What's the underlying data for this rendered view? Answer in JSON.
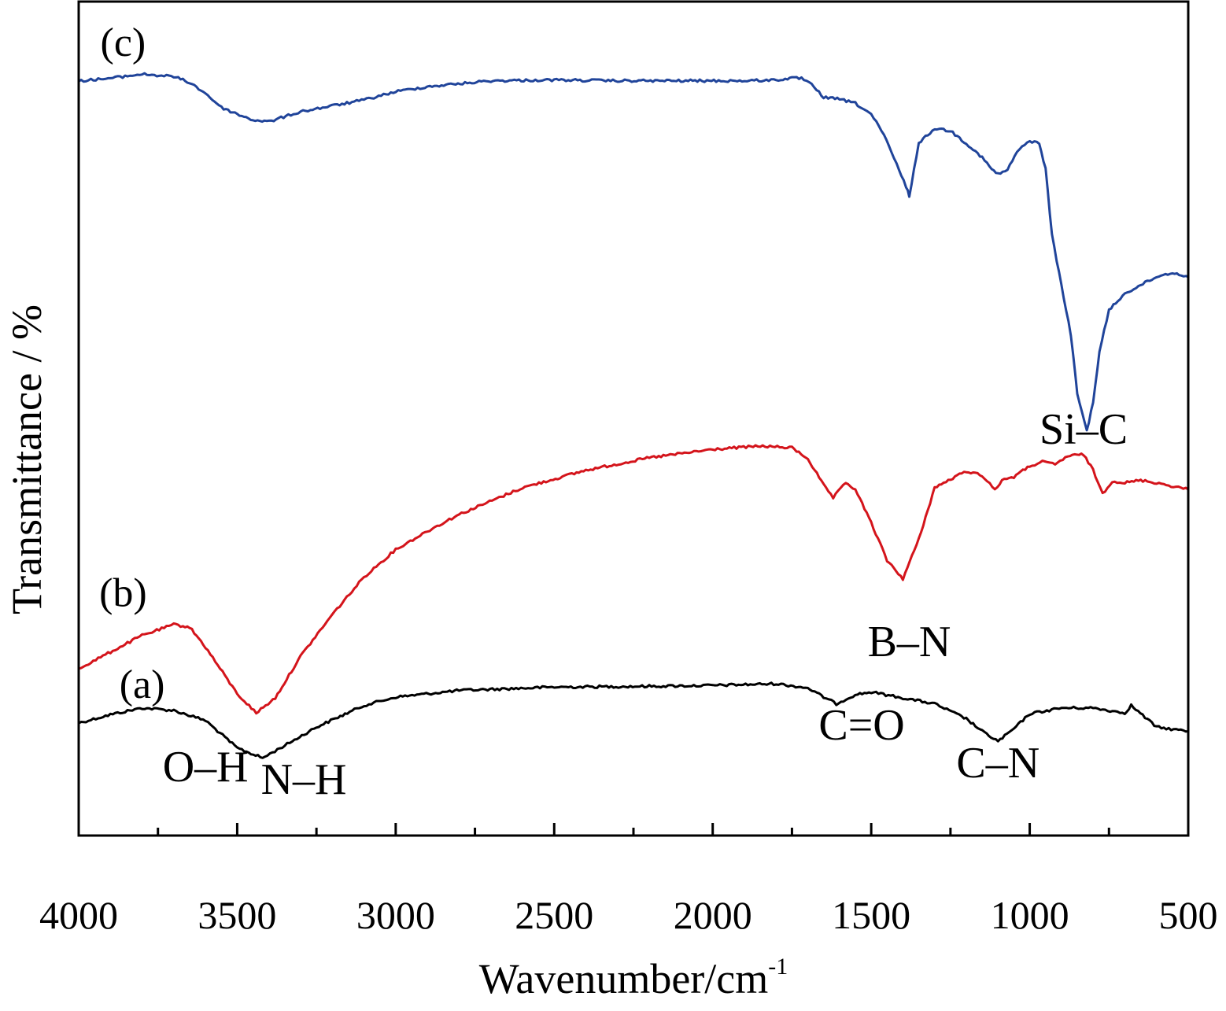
{
  "chart_data": {
    "type": "line",
    "xlabel": "Wavenumber/cm",
    "xlabel_sup": "-1",
    "ylabel": "Transmittance / %",
    "xlim": [
      4000,
      500
    ],
    "x_reversed": true,
    "xticks": [
      4000,
      3500,
      3000,
      2500,
      2000,
      1500,
      1000,
      500
    ],
    "xtick_labels": [
      "4000",
      "3500",
      "3000",
      "2500",
      "2000",
      "1500",
      "1000",
      "500"
    ],
    "ylim": [
      0,
      100
    ],
    "y_tick_labels_shown": false,
    "grid": false,
    "legend": "none",
    "series": [
      {
        "name": "(a)",
        "color": "#000000",
        "x": [
          4000,
          3900,
          3800,
          3700,
          3600,
          3500,
          3420,
          3350,
          3250,
          3100,
          3000,
          2800,
          2500,
          2200,
          2000,
          1800,
          1700,
          1650,
          1610,
          1550,
          1500,
          1400,
          1300,
          1200,
          1150,
          1100,
          1050,
          1000,
          900,
          800,
          700,
          680,
          600,
          500
        ],
        "y": [
          13.5,
          14.5,
          15.3,
          15.0,
          13.8,
          10.5,
          9.3,
          10.8,
          13.0,
          15.6,
          16.6,
          17.4,
          17.8,
          17.9,
          18.0,
          18.2,
          17.7,
          16.6,
          15.8,
          16.9,
          17.2,
          16.5,
          15.8,
          14.0,
          12.5,
          11.3,
          12.8,
          14.6,
          15.3,
          15.3,
          14.7,
          15.6,
          13.0,
          12.5
        ]
      },
      {
        "name": "(b)",
        "color": "#d4141b",
        "x": [
          4000,
          3900,
          3800,
          3700,
          3650,
          3600,
          3500,
          3440,
          3380,
          3300,
          3200,
          3100,
          3000,
          2900,
          2800,
          2600,
          2400,
          2200,
          2000,
          1850,
          1750,
          1700,
          1650,
          1620,
          1580,
          1550,
          1500,
          1450,
          1400,
          1350,
          1300,
          1250,
          1200,
          1150,
          1110,
          1080,
          1050,
          1000,
          960,
          920,
          880,
          830,
          800,
          770,
          740,
          700,
          650,
          600,
          500
        ],
        "y": [
          20.0,
          22.0,
          24.0,
          25.3,
          25.0,
          22.6,
          17.0,
          14.7,
          16.5,
          21.5,
          26.5,
          31.0,
          34.3,
          36.5,
          38.5,
          41.7,
          43.8,
          45.3,
          46.3,
          46.7,
          46.5,
          45.2,
          42.0,
          40.5,
          42.3,
          41.5,
          37.5,
          33.0,
          30.8,
          35.5,
          41.7,
          42.7,
          43.7,
          43.2,
          41.5,
          42.8,
          43.0,
          44.3,
          44.8,
          44.5,
          45.5,
          45.7,
          43.8,
          41.0,
          42.5,
          42.3,
          42.6,
          42.3,
          41.5
        ]
      },
      {
        "name": "(c)",
        "color": "#20449a",
        "x": [
          4000,
          3900,
          3800,
          3700,
          3650,
          3600,
          3550,
          3500,
          3450,
          3400,
          3300,
          3200,
          3100,
          3000,
          2900,
          2700,
          2500,
          2300,
          2100,
          1900,
          1800,
          1750,
          1720,
          1680,
          1650,
          1600,
          1550,
          1500,
          1460,
          1420,
          1390,
          1380,
          1350,
          1300,
          1250,
          1200,
          1150,
          1120,
          1100,
          1070,
          1040,
          1000,
          970,
          950,
          930,
          900,
          870,
          850,
          820,
          800,
          780,
          750,
          700,
          650,
          600,
          550,
          500
        ],
        "y": [
          90.5,
          90.8,
          91.3,
          91.0,
          90.3,
          89.0,
          87.3,
          86.5,
          85.8,
          85.6,
          86.8,
          87.5,
          88.2,
          89.2,
          89.8,
          90.5,
          90.6,
          90.5,
          90.5,
          90.5,
          90.6,
          90.8,
          90.8,
          89.8,
          88.5,
          88.3,
          87.8,
          86.5,
          84.0,
          80.5,
          77.8,
          76.7,
          83.0,
          84.8,
          84.5,
          83.0,
          81.3,
          79.9,
          79.3,
          79.8,
          82.0,
          83.3,
          83.0,
          80.0,
          72.0,
          66.0,
          60.0,
          53.0,
          48.5,
          52.0,
          58.0,
          63.0,
          65.0,
          66.0,
          67.0,
          67.5,
          67.0
        ]
      }
    ],
    "annotations": [
      {
        "text": "O–H",
        "x": 3600,
        "y": 6.5
      },
      {
        "text": "N–H",
        "x": 3290,
        "y": 5.0
      },
      {
        "text": "C=O",
        "x": 1530,
        "y": 11.5
      },
      {
        "text": "C–N",
        "x": 1100,
        "y": 7.0
      },
      {
        "text": "B–N",
        "x": 1380,
        "y": 21.5
      },
      {
        "text": "Si–C",
        "x": 830,
        "y": 47.0
      }
    ],
    "series_labels": [
      {
        "text": "(a)",
        "x": 3800,
        "y": 16.5
      },
      {
        "text": "(b)",
        "x": 3860,
        "y": 27.5
      },
      {
        "text": "(c)",
        "x": 3860,
        "y": 93.5
      }
    ]
  }
}
